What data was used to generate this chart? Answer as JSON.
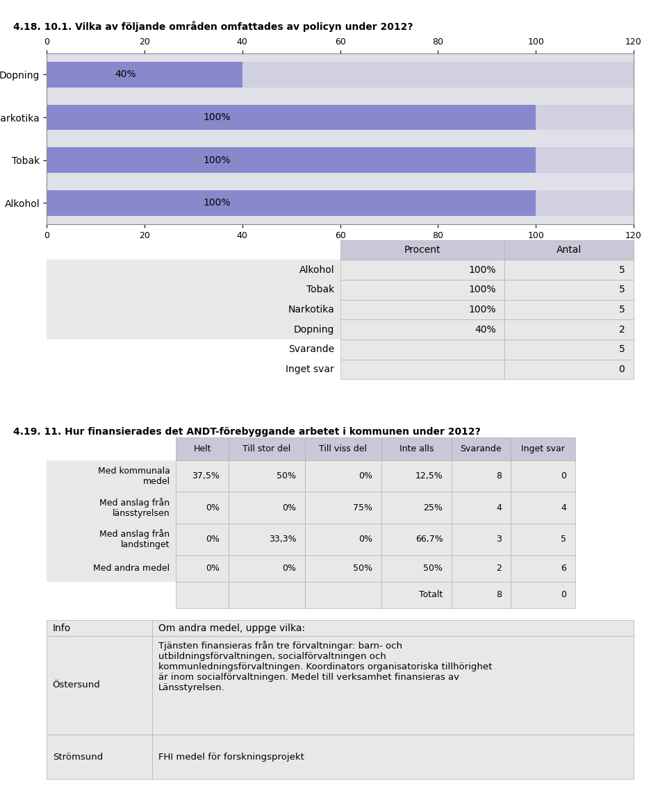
{
  "title1": "4.18. 10.1. Vilka av följande områden omfattades av policyn under 2012?",
  "bar_categories": [
    "Alkohol",
    "Tobak",
    "Narkotika",
    "Dopning"
  ],
  "bar_values": [
    100,
    100,
    100,
    40
  ],
  "bar_labels": [
    "100%",
    "100%",
    "100%",
    "40%"
  ],
  "bar_color": "#8888cc",
  "bar_bg_color": "#d0d0e0",
  "axis_bg_color": "#e0e0e8",
  "xlim": [
    0,
    120
  ],
  "xticks": [
    0,
    20,
    40,
    60,
    80,
    100,
    120
  ],
  "table1_headers": [
    "",
    "Procent",
    "Antal"
  ],
  "table1_rows": [
    [
      "Alkohol",
      "100%",
      "5"
    ],
    [
      "Tobak",
      "100%",
      "5"
    ],
    [
      "Narkotika",
      "100%",
      "5"
    ],
    [
      "Dopning",
      "40%",
      "2"
    ],
    [
      "Svarande",
      "",
      "5"
    ],
    [
      "Inget svar",
      "",
      "0"
    ]
  ],
  "title2": "4.19. 11. Hur finansierades det ANDT-förebyggande arbetet i kommunen under 2012?",
  "table2_headers": [
    "",
    "Helt",
    "Till stor del",
    "Till viss del",
    "Inte alls",
    "Svarande",
    "Inget svar"
  ],
  "table2_rows": [
    [
      "Med kommunala\nmedel",
      "37,5%",
      "50%",
      "0%",
      "12,5%",
      "8",
      "0"
    ],
    [
      "Med anslag från\nlänsstyrelsen",
      "0%",
      "0%",
      "75%",
      "25%",
      "4",
      "4"
    ],
    [
      "Med anslag från\nlandstinget",
      "0%",
      "33,3%",
      "0%",
      "66,7%",
      "3",
      "5"
    ],
    [
      "Med andra medel",
      "0%",
      "0%",
      "50%",
      "50%",
      "2",
      "6"
    ],
    [
      "",
      "",
      "",
      "",
      "Totalt",
      "8",
      "0"
    ]
  ],
  "table3_headers": [
    "Info",
    "Om andra medel, uppge vilka:"
  ],
  "table3_rows": [
    [
      "Östersund",
      "Tjänsten finansieras från tre förvaltningar: barn- och\nutbildningsförvaltningen, socialförvaltningen och\nkommunledningsförvaltningen. Koordinators organisatoriska tillhörighet\när inom socialförvaltningen. Medel till verksamhet finansieras av\nLänsstyrelsen."
    ],
    [
      "Strömsund",
      "FHI medel för forskningsprojekt"
    ]
  ],
  "header_bg": "#c8c8d8",
  "row_bg": "#e8e8e8",
  "white": "#ffffff",
  "border_color": "#b0b0b0",
  "text_color": "#000000"
}
